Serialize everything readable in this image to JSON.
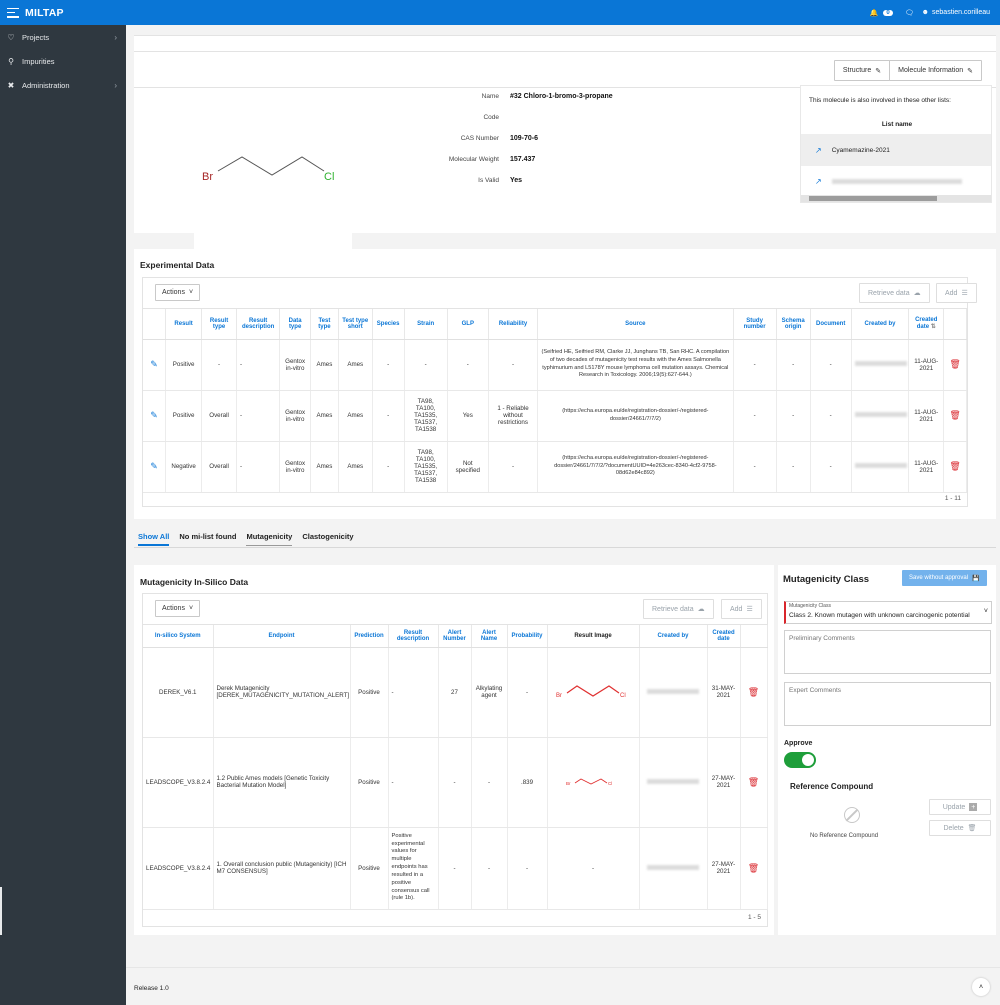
{
  "topbar": {
    "app_title": "MILTAP",
    "notification_count": "0",
    "username": "sebastien.corilleau"
  },
  "sidebar": {
    "items": [
      {
        "label": "Projects",
        "icon": "heart-pulse-icon"
      },
      {
        "label": "Impurities",
        "icon": "flask-icon"
      },
      {
        "label": "Administration",
        "icon": "tools-icon"
      }
    ]
  },
  "toolbar": {
    "structure_label": "Structure",
    "molecule_info_label": "Molecule Information"
  },
  "molecule": {
    "name_label": "Name",
    "name": "#32 Chloro-1-bromo-3-propane",
    "code_label": "Code",
    "code": "",
    "cas_label": "CAS Number",
    "cas": "109-70-6",
    "mw_label": "Molecular Weight",
    "mw": "157.437",
    "valid_label": "Is Valid",
    "valid": "Yes",
    "atom_left": "Br",
    "atom_right": "Cl"
  },
  "other_lists": {
    "intro": "This molecule is also involved in these other lists:",
    "header": "List name",
    "items": [
      "Cyamemazine-2021"
    ]
  },
  "experimental": {
    "title": "Experimental Data",
    "actions_label": "Actions",
    "retrieve_label": "Retrieve data",
    "add_label": "Add",
    "columns": [
      "Result",
      "Result type",
      "Result description",
      "Data type",
      "Test type",
      "Test type short",
      "Species",
      "Strain",
      "GLP",
      "Reliability",
      "Source",
      "Study number",
      "Schema origin",
      "Document",
      "Created by",
      "Created date"
    ],
    "rows": [
      {
        "result": "Positive",
        "result_type": "-",
        "result_desc": "-",
        "data_type": "Gentox in-vitro",
        "test_type": "Ames",
        "test_short": "Ames",
        "species": "-",
        "strain": "-",
        "glp": "-",
        "reliability": "-",
        "source": "(Seifried HE, Seifried RM, Clarke JJ, Junghans TB, San RHC. A compilation of two decades of mutagenicity test results with the Ames Salmonella typhimurium and L5178Y mouse lymphoma cell mutation assays. Chemical Research in Toxicology. 2006;19(5):627-644.)",
        "study": "-",
        "schema": "-",
        "document": "-",
        "created_date": "11-AUG-2021"
      },
      {
        "result": "Positive",
        "result_type": "Overall",
        "result_desc": "-",
        "data_type": "Gentox in-vitro",
        "test_type": "Ames",
        "test_short": "Ames",
        "species": "-",
        "strain": "TA98, TA100, TA1535, TA1537, TA1538",
        "glp": "Yes",
        "reliability": "1 - Reliable without restrictions",
        "source": "(https://echa.europa.eu/de/registration-dossier/-/registered-dossier/24661/7/7/2)",
        "study": "-",
        "schema": "-",
        "document": "-",
        "created_date": "11-AUG-2021"
      },
      {
        "result": "Negative",
        "result_type": "Overall",
        "result_desc": "-",
        "data_type": "Gentox in-vitro",
        "test_type": "Ames",
        "test_short": "Ames",
        "species": "-",
        "strain": "TA98, TA100, TA1535, TA1537, TA1538",
        "glp": "Not specified",
        "reliability": "-",
        "source": "(https://echa.europa.eu/de/registration-dossier/-/registered-dossier/24661/7/7/2/?documentUUID=4e263cec-8340-4cf2-9758-08d62e84c892)",
        "study": "-",
        "schema": "-",
        "document": "-",
        "created_date": "11-AUG-2021"
      }
    ],
    "pagination": "1 - 11"
  },
  "tabs": [
    "Show All",
    "No mi-list found",
    "Mutagenicity",
    "Clastogenicity"
  ],
  "insilico": {
    "title": "Mutagenicity In-Silico Data",
    "actions_label": "Actions",
    "retrieve_label": "Retrieve data",
    "add_label": "Add",
    "columns": [
      "In-silico System",
      "Endpoint",
      "Prediction",
      "Result description",
      "Alert Number",
      "Alert Name",
      "Probability",
      "Result Image",
      "Created by",
      "Created date"
    ],
    "rows": [
      {
        "system": "DEREK_V6.1",
        "endpoint": "Derek Mutagenicity [DEREK_MUTAGENICITY_MUTATION_ALERT]",
        "prediction": "Positive",
        "desc": "-",
        "alert_number": "27",
        "alert_name": "Alkylating agent",
        "probability": "-",
        "created_date": "31-MAY-2021"
      },
      {
        "system": "LEADSCOPE_V3.8.2.4",
        "endpoint": "1.2 Public Ames models [Genetic Toxicity Bacterial Mutation Model]",
        "prediction": "Positive",
        "desc": "-",
        "alert_number": "-",
        "alert_name": "-",
        "probability": ".839",
        "created_date": "27-MAY-2021"
      },
      {
        "system": "LEADSCOPE_V3.8.2.4",
        "endpoint": "1. Overall conclusion public (Mutagenicity) [ICH M7 CONSENSUS]",
        "prediction": "Positive",
        "desc": "Positive experimental values for multiple endpoints has resulted in a positive consensus call (rule 1b).",
        "alert_number": "-",
        "alert_name": "-",
        "probability": "-",
        "image": "-",
        "created_date": "27-MAY-2021"
      }
    ],
    "pagination": "1 - 5"
  },
  "mutagenicity_class": {
    "title": "Mutagenicity Class",
    "save_label": "Save without approval",
    "select_label": "Mutagenicity Class",
    "select_value": "Class 2. Known mutagen with unknown carcinogenic potential",
    "preliminary_placeholder": "Preliminary Comments",
    "expert_placeholder": "Expert Comments",
    "approve_label": "Approve"
  },
  "reference": {
    "title": "Reference Compound",
    "empty_text": "No Reference Compound",
    "update_label": "Update",
    "delete_label": "Delete"
  },
  "footer": {
    "release": "Release 1.0"
  },
  "colors": {
    "brand": "#0a76d6",
    "danger": "#d9262c",
    "success": "#1e9e3a",
    "sidebar": "#2f3840"
  }
}
